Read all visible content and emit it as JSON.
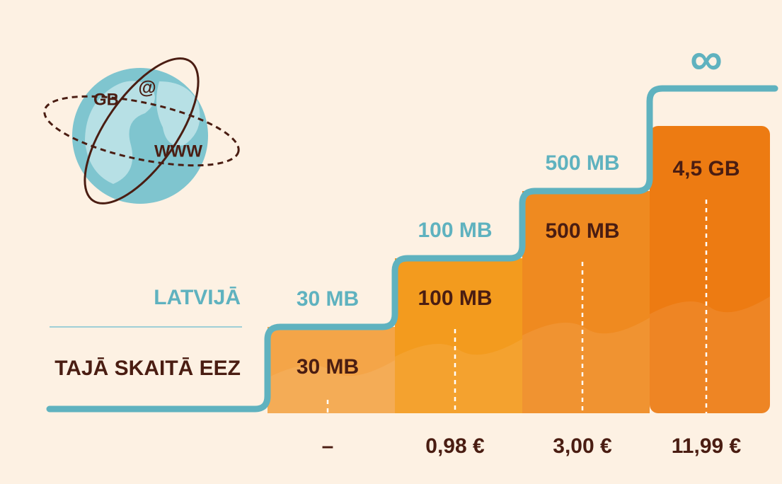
{
  "globe": {
    "labels": [
      "GB",
      "@",
      "WWW"
    ]
  },
  "row_labels": {
    "latvija": "LATVIJĀ",
    "eez": "TAJĀ SKAITĀ EEZ"
  },
  "plans": [
    {
      "latvija": "30 MB",
      "eez": "30 MB",
      "price": "–"
    },
    {
      "latvija": "100 MB",
      "eez": "100 MB",
      "price": "0,98 €"
    },
    {
      "latvija": "500 MB",
      "eez": "500 MB",
      "price": "3,00 €"
    },
    {
      "latvija": "∞",
      "eez": "4,5 GB",
      "price": "11,99 €"
    }
  ]
}
